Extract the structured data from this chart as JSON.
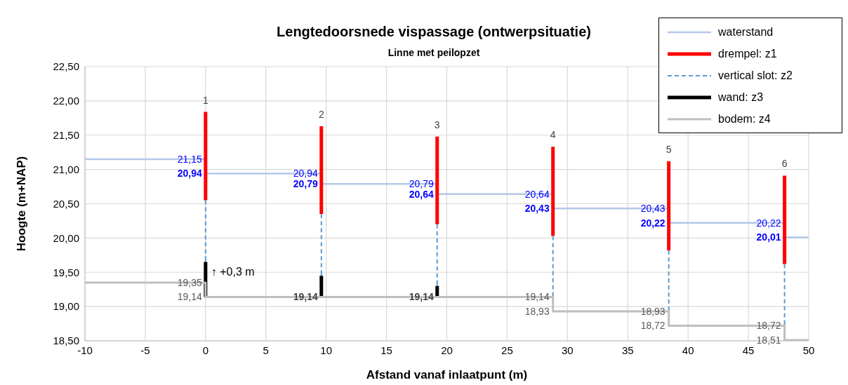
{
  "chart_data": {
    "type": "line",
    "title": "Lengtedoorsnede vispassage (ontwerpsituatie)",
    "subtitle": "Linne met peilopzet",
    "xlabel": "Afstand vanaf inlaatpunt (m)",
    "ylabel": "Hoogte (m+NAP)",
    "xlim": [
      -10,
      50
    ],
    "xticks": [
      -10,
      -5,
      0,
      5,
      10,
      15,
      20,
      25,
      30,
      35,
      40,
      45,
      50
    ],
    "ylim": [
      18.5,
      22.5
    ],
    "yticks": [
      {
        "value": 18.5,
        "label": "18,50"
      },
      {
        "value": 19,
        "label": "19,00"
      },
      {
        "value": 19.5,
        "label": "19,50"
      },
      {
        "value": 20,
        "label": "20,00"
      },
      {
        "value": 20.5,
        "label": "20,50"
      },
      {
        "value": 21,
        "label": "21,00"
      },
      {
        "value": 21.5,
        "label": "21,50"
      },
      {
        "value": 22,
        "label": "22,00"
      },
      {
        "value": 22.5,
        "label": "22,50"
      }
    ],
    "grid": true,
    "legend": "top right",
    "marker": "none",
    "series": [
      {
        "name": "waterstand",
        "color": "#b4c7e7",
        "line_style": "solid",
        "x": [
          -10,
          0,
          null,
          0,
          9.6,
          null,
          9.6,
          19.2,
          null,
          19.2,
          28.8,
          null,
          28.8,
          38.4,
          null,
          38.4,
          48,
          null,
          48,
          50
        ],
        "values": [
          21.15,
          21.15,
          null,
          20.94,
          20.94,
          null,
          20.79,
          20.79,
          null,
          20.64,
          20.64,
          null,
          20.43,
          20.43,
          null,
          20.22,
          20.22,
          null,
          20.01,
          20.01
        ]
      },
      {
        "name": "drempel: z1",
        "color": "#ff0000",
        "line_style": "solid",
        "x": [
          0,
          0,
          null,
          9.6,
          9.6,
          null,
          19.2,
          19.2,
          null,
          28.8,
          28.8,
          null,
          38.4,
          38.4,
          null,
          48,
          48
        ],
        "values": [
          20.55,
          21.84,
          null,
          20.35,
          21.63,
          null,
          20.2,
          21.48,
          null,
          20.03,
          21.33,
          null,
          19.82,
          21.12,
          null,
          19.62,
          20.91
        ]
      },
      {
        "name": "vertical slot: z2",
        "color": "#5b9bd5",
        "line_style": "dashed",
        "x": [
          0,
          0,
          null,
          9.6,
          9.6,
          null,
          19.2,
          19.2,
          null,
          28.8,
          28.8,
          null,
          38.4,
          38.4,
          null,
          48,
          48
        ],
        "values": [
          20.55,
          19.65,
          null,
          20.35,
          19.45,
          null,
          20.2,
          19.3,
          null,
          20.03,
          19.14,
          null,
          19.82,
          18.93,
          null,
          19.62,
          18.72
        ]
      },
      {
        "name": "wand: z3",
        "color": "#000000",
        "line_style": "solid",
        "x": [
          0,
          0,
          null,
          9.6,
          9.6,
          null,
          19.2,
          19.2
        ],
        "values": [
          19.14,
          19.65,
          null,
          19.14,
          19.45,
          null,
          19.14,
          19.3
        ]
      },
      {
        "name": "bodem: z4",
        "color": "#bfbfbf",
        "line_style": "solid",
        "x": [
          -10,
          0,
          0,
          28.8,
          28.8,
          38.4,
          38.4,
          48,
          48,
          50
        ],
        "values": [
          19.35,
          19.35,
          19.14,
          19.14,
          18.93,
          18.93,
          18.72,
          18.72,
          18.51,
          18.51
        ]
      }
    ],
    "annotations": [
      {
        "text": "1",
        "x": 0,
        "y": 21.84
      },
      {
        "text": "2",
        "x": 9.6,
        "y": 21.63
      },
      {
        "text": "3",
        "x": 19.2,
        "y": 21.48
      },
      {
        "text": "4",
        "x": 28.8,
        "y": 21.33
      },
      {
        "text": "5",
        "x": 38.4,
        "y": 21.12
      },
      {
        "text": "6",
        "x": 48,
        "y": 20.91
      },
      {
        "text": "21,15",
        "x": 0,
        "y": 21.15
      },
      {
        "text": "20,94",
        "x": 0,
        "y": 20.94
      },
      {
        "text": "20,94",
        "x": 9.6,
        "y": 20.94
      },
      {
        "text": "20,79",
        "x": 9.6,
        "y": 20.79
      },
      {
        "text": "20,79",
        "x": 19.2,
        "y": 20.79
      },
      {
        "text": "20,64",
        "x": 19.2,
        "y": 20.64
      },
      {
        "text": "20,64",
        "x": 28.8,
        "y": 20.64
      },
      {
        "text": "20,43",
        "x": 28.8,
        "y": 20.43
      },
      {
        "text": "20,43",
        "x": 38.4,
        "y": 20.43
      },
      {
        "text": "20,22",
        "x": 38.4,
        "y": 20.22
      },
      {
        "text": "20,22",
        "x": 48,
        "y": 20.22
      },
      {
        "text": "20,01",
        "x": 48,
        "y": 20.01
      },
      {
        "text": "19,35",
        "x": 0,
        "y": 19.35
      },
      {
        "text": "19,14",
        "x": 0,
        "y": 19.14
      },
      {
        "text": "19,14",
        "x": 9.6,
        "y": 19.14
      },
      {
        "text": "19,14",
        "x": 19.2,
        "y": 19.14
      },
      {
        "text": "19,14",
        "x": 28.8,
        "y": 19.14
      },
      {
        "text": "18,93",
        "x": 28.8,
        "y": 18.93
      },
      {
        "text": "18,93",
        "x": 38.4,
        "y": 18.93
      },
      {
        "text": "18,72",
        "x": 38.4,
        "y": 18.72
      },
      {
        "text": "18,72",
        "x": 48,
        "y": 18.72
      },
      {
        "text": "18,51",
        "x": 48,
        "y": 18.51
      },
      {
        "text": "↑ +0,3 m",
        "x": 0,
        "y": 19.5
      }
    ]
  }
}
